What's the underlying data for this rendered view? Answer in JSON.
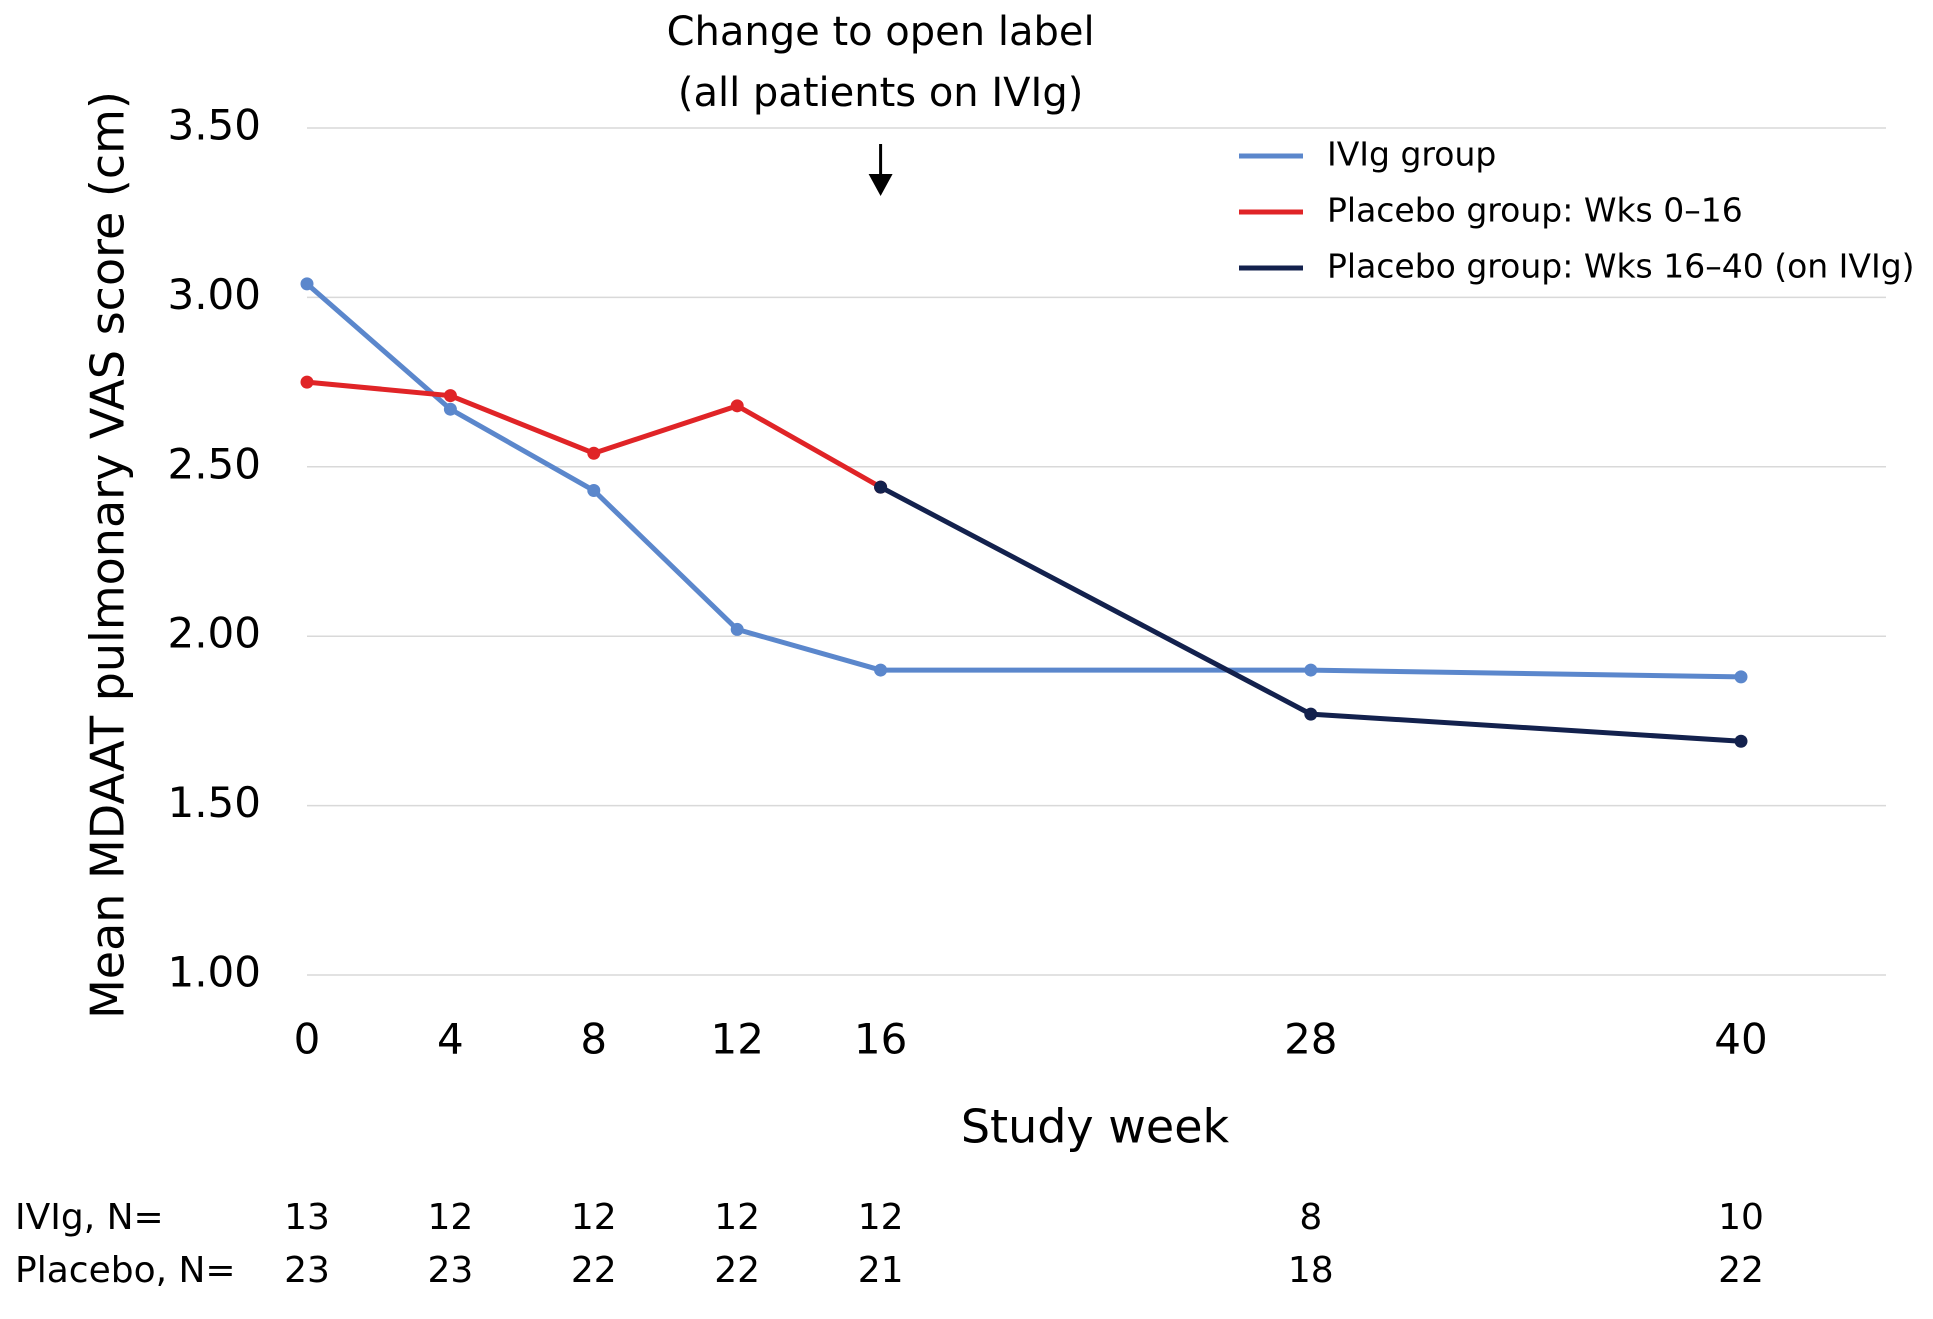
{
  "chart_data": {
    "type": "line",
    "annotation": {
      "text": [
        "Change to open label",
        "(all patients on IVIg)"
      ],
      "x": 16
    },
    "x_label": "Study week",
    "y_label": "Mean MDAAT pulmonary VAS score (cm)",
    "xlim": [
      0,
      44
    ],
    "xticks": [
      0,
      4,
      8,
      12,
      16,
      28,
      40
    ],
    "ylim": [
      1,
      3.5
    ],
    "yticks": [
      {
        "value": 1,
        "label": "1.00"
      },
      {
        "value": 1.5,
        "label": "1.50"
      },
      {
        "value": 2,
        "label": "2.00"
      },
      {
        "value": 2.5,
        "label": "2.50"
      },
      {
        "value": 3,
        "label": "3.00"
      },
      {
        "value": 3.5,
        "label": "3.50"
      }
    ],
    "grid": true,
    "legend": "upper right",
    "series": [
      {
        "name": "IVIg group",
        "color": "#5b87cc",
        "x": [
          0,
          4,
          8,
          12,
          16,
          28,
          40
        ],
        "values": [
          3.04,
          2.67,
          2.43,
          2.02,
          1.9,
          1.9,
          1.88
        ]
      },
      {
        "name": "Placebo group: Wks 0–16",
        "color": "#e02427",
        "x": [
          0,
          4,
          8,
          12,
          16
        ],
        "values": [
          2.75,
          2.71,
          2.54,
          2.68,
          2.44
        ]
      },
      {
        "name": "Placebo group: Wks 16–40 (on IVIg)",
        "color": "#13214d",
        "x": [
          16,
          28,
          40
        ],
        "values": [
          2.44,
          1.77,
          1.69
        ]
      }
    ],
    "n_table": [
      {
        "label": "IVIg, N=",
        "values": [
          13,
          12,
          12,
          12,
          12,
          8,
          10
        ]
      },
      {
        "label": "Placebo, N=",
        "values": [
          23,
          23,
          22,
          22,
          21,
          18,
          22
        ]
      }
    ]
  }
}
